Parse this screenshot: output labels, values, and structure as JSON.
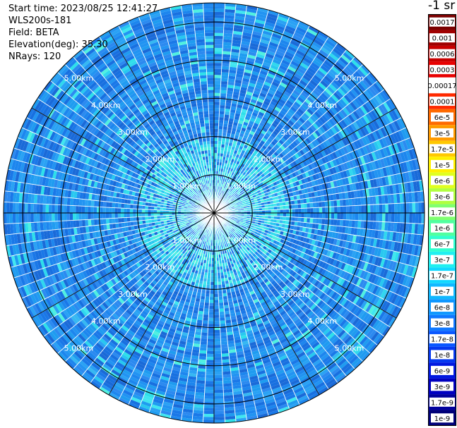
{
  "header": {
    "start_time": "Start time: 2023/08/25 12:41:27",
    "instrument": "WLS200s-181",
    "field": "Field: BETA",
    "elevation": "Elevation(deg): 35.30",
    "nrays": "NRays: 120"
  },
  "colorbar": {
    "unit_label": "-1 sr",
    "labels": [
      "0.0017",
      "0.001",
      "0.0006",
      "0.0003",
      "0.00017",
      "0.0001",
      "6e-5",
      "3e-5",
      "1.7e-5",
      "1e-5",
      "6e-6",
      "3e-6",
      "1.7e-6",
      "1e-6",
      "6e-7",
      "3e-7",
      "1.7e-7",
      "1e-7",
      "6e-8",
      "3e-8",
      "1.7e-8",
      "1e-8",
      "6e-9",
      "3e-9",
      "1.7e-9",
      "1e-9"
    ],
    "colors": [
      "#7a0000",
      "#a00000",
      "#c80000",
      "#e80000",
      "#ffffff",
      "#ff2a00",
      "#ff6a00",
      "#ff9a00",
      "#ffc800",
      "#fff000",
      "#e0ff20",
      "#b0ff40",
      "#80ff70",
      "#50ffa0",
      "#30ffd0",
      "#20f0f0",
      "#10d8ff",
      "#10b8ff",
      "#1098ff",
      "#1078ff",
      "#0a58ff",
      "#0538f0",
      "#0018e0",
      "#0000c0",
      "#00009c",
      "#000078"
    ]
  },
  "chart_data": {
    "type": "ppi",
    "nrays": 120,
    "range_max_km": 5.5,
    "range_rings_km": [
      1,
      2,
      3,
      4,
      5
    ],
    "ring_labels": [
      "1.00km",
      "2.00km",
      "3.00km",
      "4.00km",
      "5.00km"
    ],
    "azimuth_lines_deg": [
      0,
      30,
      60,
      90,
      120,
      150,
      180,
      210,
      240,
      270,
      300,
      330
    ],
    "label_azimuths_deg": [
      315,
      45,
      135,
      225
    ],
    "field": "BETA",
    "colormap_bins": 26
  }
}
